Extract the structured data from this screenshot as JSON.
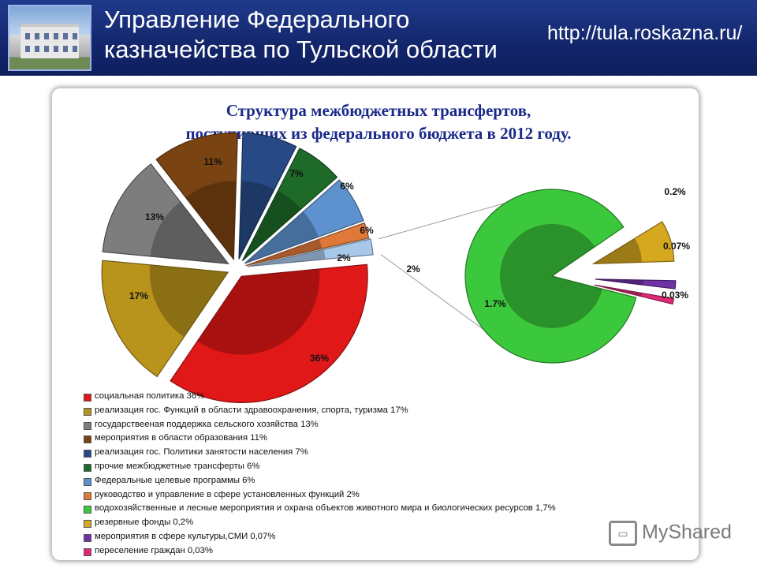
{
  "header": {
    "title_line1": "Управление Федерального",
    "title_line2": "казначейства по Тульской области",
    "url": "http://tula.roskazna.ru/"
  },
  "chart_data": {
    "type": "pie",
    "title_line1": "Структура межбюджетных трансфертов,",
    "title_line2": "поступивших из федерального бюджета в 2012 году.",
    "slices": [
      {
        "label": "социальная политика 36%",
        "value": 36,
        "data_label": "36%",
        "color": "#e01818"
      },
      {
        "label": "реализация гос. Функций в области здравоохранения, спорта, туризма 17%",
        "value": 17,
        "data_label": "17%",
        "color": "#b8941c"
      },
      {
        "label": "государствееная поддержка сельского хозяйства 13%",
        "value": 13,
        "data_label": "13%",
        "color": "#7d7d7d"
      },
      {
        "label": "мероприятия в области образования 11%",
        "value": 11,
        "data_label": "11%",
        "color": "#7a4312"
      },
      {
        "label": "реализация гос. Политики занятости населения 7%",
        "value": 7,
        "data_label": "7%",
        "color": "#274a86"
      },
      {
        "label": "прочие межбюджетные трансферты 6%",
        "value": 6,
        "data_label": "6%",
        "color": "#1e6a28"
      },
      {
        "label": "Федеральные целевые программы 6%",
        "value": 6,
        "data_label": "6%",
        "color": "#5d92cf"
      },
      {
        "label": "руководство и управление в сфере установленных функций 2%",
        "value": 2,
        "data_label": "2%",
        "color": "#e0783a"
      },
      {
        "label": "водохозяйственные и лесные мероприятия и охрана объектов животного мира и биологических ресурсов 1,7%",
        "value": 1.7,
        "data_label": "1.7%",
        "color": "#3cc83c"
      },
      {
        "label": "резервные фонды 0,2%",
        "value": 0.2,
        "data_label": "0.2%",
        "color": "#d6a820"
      },
      {
        "label": "мероприятия в сфере культуры,СМИ 0,07%",
        "value": 0.07,
        "data_label": "0.07%",
        "color": "#7033a6"
      },
      {
        "label": "переселение граждан 0,03%",
        "value": 0.03,
        "data_label": "0.03%",
        "color": "#e02a78"
      }
    ],
    "other_group_label": "2%",
    "legend_position": "bottom"
  },
  "watermark": {
    "text": "MyShared"
  }
}
